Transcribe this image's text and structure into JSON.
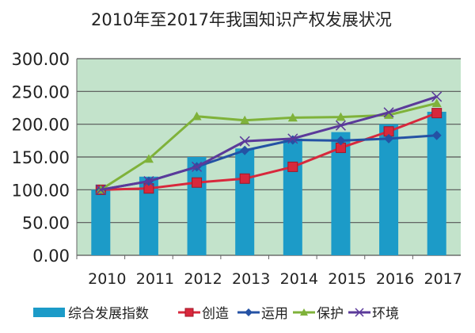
{
  "chart_data": {
    "type": "bar+line",
    "title": "2010年至2017年我国知识产权发展状况",
    "categories": [
      "2010",
      "2011",
      "2012",
      "2013",
      "2014",
      "2015",
      "2016",
      "2017"
    ],
    "ylim": [
      0,
      300
    ],
    "yticks": [
      "0.00",
      "50.00",
      "100.00",
      "150.00",
      "200.00",
      "250.00",
      "300.00"
    ],
    "grid": true,
    "legend_position": "bottom",
    "plot_background": "#c3e3cb",
    "series": [
      {
        "name": "综合发展指数",
        "kind": "bar",
        "color": "#1c9bc8",
        "marker": "bar",
        "values": [
          100,
          120,
          150,
          163,
          178,
          188,
          200,
          219
        ]
      },
      {
        "name": "创造",
        "kind": "line",
        "color": "#d8283c",
        "marker": "square",
        "values": [
          100,
          102,
          111,
          117,
          135,
          164,
          189,
          217
        ]
      },
      {
        "name": "运用",
        "kind": "line",
        "color": "#2452a4",
        "marker": "diamond",
        "values": [
          100,
          113,
          135,
          160,
          176,
          175,
          178,
          183
        ]
      },
      {
        "name": "保护",
        "kind": "line",
        "color": "#7fb23a",
        "marker": "triangle",
        "values": [
          100,
          147,
          212,
          206,
          210,
          211,
          214,
          232
        ]
      },
      {
        "name": "环境",
        "kind": "line",
        "color": "#5b3a9a",
        "marker": "x",
        "values": [
          100,
          113,
          135,
          174,
          178,
          198,
          218,
          242
        ]
      }
    ]
  }
}
